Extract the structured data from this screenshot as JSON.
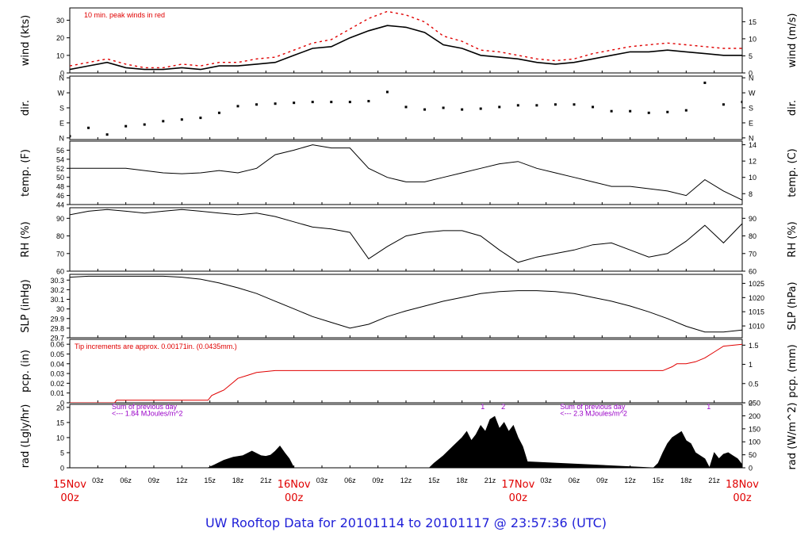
{
  "footer": {
    "title": "UW Rooftop Data for 20101114  to  20101117 @ 23:57:36  (UTC)"
  },
  "colors": {
    "axis": "#000000",
    "series": "#000000",
    "peak": "#e00000",
    "red": "#e00000",
    "purple": "#9a00c8",
    "footer": "#1f1fd8"
  },
  "chart_data": [
    {
      "type": "line",
      "id": "wind",
      "ylabel": "wind (kts)",
      "y2label": "wind (m/s)",
      "ylim": [
        0,
        37
      ],
      "yticks": [
        0,
        10,
        20,
        30
      ],
      "y2ticks": [
        "0",
        "5",
        "10",
        "15"
      ],
      "y2values": [
        0,
        9.72,
        19.44,
        29.16
      ],
      "annotation": "10 min. peak winds in red",
      "series": [
        {
          "x": [
            0,
            2,
            4,
            6,
            8,
            10,
            12,
            14,
            16,
            18,
            20,
            22,
            24,
            26,
            28,
            30,
            32,
            34,
            36,
            38,
            40,
            42,
            44,
            46,
            48,
            50,
            52,
            54,
            56,
            58,
            60,
            62,
            64,
            66,
            68,
            70,
            72
          ],
          "y": [
            2,
            4,
            6,
            3,
            2,
            2,
            3,
            2,
            4,
            4,
            5,
            6,
            10,
            14,
            15,
            20,
            24,
            27,
            26,
            23,
            16,
            14,
            10,
            9,
            8,
            6,
            5,
            6,
            8,
            10,
            12,
            12,
            13,
            12,
            11,
            10,
            10
          ]
        },
        {
          "x": [
            0,
            2,
            4,
            6,
            8,
            10,
            12,
            14,
            16,
            18,
            20,
            22,
            24,
            26,
            28,
            30,
            32,
            34,
            36,
            38,
            40,
            42,
            44,
            46,
            48,
            50,
            52,
            54,
            56,
            58,
            60,
            62,
            64,
            66,
            68,
            70,
            72
          ],
          "y": [
            4,
            6,
            8,
            5,
            3,
            3,
            5,
            4,
            6,
            6,
            8,
            9,
            13,
            17,
            19,
            25,
            31,
            35,
            33,
            29,
            21,
            18,
            13,
            12,
            10,
            8,
            7,
            8,
            11,
            13,
            15,
            16,
            17,
            16,
            15,
            14,
            14
          ]
        }
      ]
    },
    {
      "type": "scatter",
      "id": "dir",
      "ylabel": "dir.",
      "y2label": "dir.",
      "ylim": [
        -10,
        370
      ],
      "yticks": [
        0,
        90,
        180,
        270,
        360
      ],
      "ytick_labels": [
        "N",
        "E",
        "S",
        "W",
        "N"
      ],
      "series": [
        {
          "x": [
            0,
            2,
            4,
            6,
            8,
            10,
            12,
            14,
            16,
            18,
            20,
            22,
            24,
            26,
            28,
            30,
            32,
            34,
            36,
            38,
            40,
            42,
            44,
            46,
            48,
            50,
            52,
            54,
            56,
            58,
            60,
            62,
            64,
            66,
            68,
            70,
            72
          ],
          "y": [
            10,
            60,
            20,
            70,
            80,
            100,
            110,
            120,
            150,
            190,
            200,
            205,
            210,
            215,
            215,
            215,
            220,
            275,
            185,
            170,
            180,
            170,
            175,
            185,
            195,
            195,
            200,
            200,
            185,
            160,
            160,
            150,
            155,
            165,
            330,
            200,
            215
          ]
        }
      ]
    },
    {
      "type": "line",
      "id": "temp",
      "ylabel": "temp. (F)",
      "y2label": "temp. (C)",
      "ylim": [
        44,
        58
      ],
      "yticks": [
        44,
        46,
        48,
        50,
        52,
        54,
        56
      ],
      "y2ticks": [
        "8",
        "10",
        "12",
        "14"
      ],
      "y2values": [
        46.4,
        50,
        53.6,
        57.2
      ],
      "series": [
        {
          "x": [
            0,
            2,
            4,
            6,
            8,
            10,
            12,
            14,
            16,
            18,
            20,
            22,
            24,
            26,
            28,
            30,
            32,
            34,
            36,
            38,
            40,
            42,
            44,
            46,
            48,
            50,
            52,
            54,
            56,
            58,
            60,
            62,
            64,
            66,
            68,
            70,
            72
          ],
          "y": [
            52,
            52,
            52,
            52,
            51.5,
            51,
            50.8,
            51,
            51.5,
            51,
            52,
            55,
            56,
            57.2,
            56.5,
            56.5,
            52,
            50,
            49,
            49,
            50,
            51,
            52,
            53,
            53.5,
            52,
            51,
            50,
            49,
            48,
            48,
            47.5,
            47,
            46,
            49.5,
            47,
            45
          ]
        }
      ]
    },
    {
      "type": "line",
      "id": "rh",
      "ylabel": "RH (%)",
      "y2label": "RH (%)",
      "ylim": [
        60,
        96
      ],
      "yticks": [
        60,
        70,
        80,
        90
      ],
      "y2ticks": [
        "60",
        "70",
        "80",
        "90"
      ],
      "y2values": [
        60,
        70,
        80,
        90
      ],
      "series": [
        {
          "x": [
            0,
            2,
            4,
            6,
            8,
            10,
            12,
            14,
            16,
            18,
            20,
            22,
            24,
            26,
            28,
            30,
            32,
            34,
            36,
            38,
            40,
            42,
            44,
            46,
            48,
            50,
            52,
            54,
            56,
            58,
            60,
            62,
            64,
            66,
            68,
            70,
            72
          ],
          "y": [
            92,
            94,
            95,
            94,
            93,
            94,
            95,
            94,
            93,
            92,
            93,
            91,
            88,
            85,
            84,
            82,
            67,
            74,
            80,
            82,
            83,
            83,
            80,
            72,
            65,
            68,
            70,
            72,
            75,
            76,
            72,
            68,
            70,
            77,
            86,
            76,
            87
          ]
        }
      ]
    },
    {
      "type": "line",
      "id": "slp",
      "ylabel": "SLP (inHg)",
      "y2label": "SLP (hPa)",
      "ylim": [
        29.7,
        30.36
      ],
      "yticks": [
        29.7,
        29.8,
        29.9,
        30.0,
        30.1,
        30.2,
        30.3
      ],
      "y2ticks": [
        "1010",
        "1015",
        "1020",
        "1025"
      ],
      "y2values": [
        29.823,
        29.971,
        30.118,
        30.266
      ],
      "series": [
        {
          "x": [
            0,
            2,
            4,
            6,
            8,
            10,
            12,
            14,
            16,
            18,
            20,
            22,
            24,
            26,
            28,
            30,
            32,
            34,
            36,
            38,
            40,
            42,
            44,
            46,
            48,
            50,
            52,
            54,
            56,
            58,
            60,
            62,
            64,
            66,
            68,
            70,
            72
          ],
          "y": [
            30.33,
            30.34,
            30.34,
            30.34,
            30.34,
            30.34,
            30.33,
            30.31,
            30.27,
            30.22,
            30.16,
            30.08,
            30.0,
            29.92,
            29.86,
            29.8,
            29.84,
            29.92,
            29.98,
            30.03,
            30.08,
            30.12,
            30.16,
            30.18,
            30.19,
            30.19,
            30.18,
            30.16,
            30.12,
            30.08,
            30.03,
            29.97,
            29.9,
            29.82,
            29.76,
            29.76,
            29.78
          ]
        }
      ]
    },
    {
      "type": "line",
      "id": "pcp",
      "ylabel": "pcp. (in)",
      "y2label": "pcp. (mm)",
      "ylim": [
        0,
        0.065
      ],
      "yticks": [
        0,
        0.01,
        0.02,
        0.03,
        0.04,
        0.05,
        0.06
      ],
      "y2ticks": [
        "0",
        "0.5",
        "1",
        "1.5"
      ],
      "y2values": [
        0,
        0.01969,
        0.03937,
        0.05906
      ],
      "annotation": "Tip increments are approx. 0.00171in. (0.0435mm.)",
      "series": [
        {
          "x": [
            0,
            4.8,
            5.0,
            14.8,
            15.2,
            16,
            16.5,
            17,
            17.5,
            18,
            19,
            20,
            22,
            36,
            63.5,
            64.5,
            65,
            66,
            67,
            68,
            69,
            70,
            72
          ],
          "y": [
            0,
            0,
            0.0026,
            0.0026,
            0.0075,
            0.011,
            0.013,
            0.017,
            0.021,
            0.025,
            0.028,
            0.031,
            0.033,
            0.033,
            0.033,
            0.037,
            0.04,
            0.04,
            0.042,
            0.046,
            0.052,
            0.058,
            0.06
          ]
        }
      ]
    },
    {
      "type": "area",
      "id": "rad",
      "ylabel": "rad (Lgly/hr)",
      "y2label": "rad (W/m^2)",
      "ylim": [
        0,
        21
      ],
      "yticks": [
        0,
        5,
        10,
        15,
        20
      ],
      "y2ticks": [
        "0",
        "50",
        "100",
        "150",
        "200",
        "250"
      ],
      "y2values": [
        0,
        4.3,
        8.6,
        12.9,
        17.2,
        21.5
      ],
      "annotations": [
        {
          "text": "Sum of previous day",
          "x": 4.5,
          "y": 20.2
        },
        {
          "text": "<--- 1.84 MJoules/m^2",
          "x": 4.5,
          "y": 18.0
        },
        {
          "text": "Sum of previous day",
          "x": 52.5,
          "y": 20.2
        },
        {
          "text": "<--- 2.3 MJoules/m^2",
          "x": 52.5,
          "y": 18.0
        },
        {
          "text": "1",
          "x": 44.0,
          "y": 20.2
        },
        {
          "text": "2",
          "x": 46.2,
          "y": 20.2
        },
        {
          "text": "1",
          "x": 68.2,
          "y": 20.2
        }
      ],
      "series": [
        {
          "x": [
            0,
            14.8,
            15.5,
            16.5,
            17.5,
            18.5,
            19.5,
            20.5,
            21,
            21.5,
            22,
            22.5,
            23,
            23.5,
            24,
            38.5,
            39,
            40,
            41,
            42,
            42.5,
            43,
            43.5,
            44,
            44.5,
            45,
            45.5,
            46,
            46.5,
            47,
            47.5,
            48,
            48.5,
            49,
            62.5,
            63,
            63.5,
            64,
            64.5,
            65,
            65.5,
            66,
            66.5,
            67,
            67.5,
            68,
            68.5,
            69,
            69.5,
            70,
            70.5,
            71,
            71.5,
            72
          ],
          "y": [
            0,
            0,
            1,
            2.5,
            3.5,
            4,
            5.5,
            4,
            3.8,
            4.2,
            5.5,
            7.2,
            5,
            3,
            0,
            0,
            1.5,
            4,
            7,
            10,
            12,
            9,
            11,
            14,
            12,
            16,
            17,
            13,
            15,
            12,
            14,
            10,
            7,
            2,
            0,
            1.5,
            5,
            8,
            10,
            11,
            12,
            9,
            8,
            5,
            4,
            3,
            0,
            5,
            3,
            4.5,
            5,
            4,
            3,
            1
          ]
        }
      ]
    }
  ],
  "x_axis": {
    "hours_per_day": 24,
    "span": 72,
    "ticks": [
      {
        "h": 0,
        "label": "15Nov",
        "label2": "00z",
        "major": true
      },
      {
        "h": 3,
        "label": "03z"
      },
      {
        "h": 6,
        "label": "06z"
      },
      {
        "h": 9,
        "label": "09z"
      },
      {
        "h": 12,
        "label": "12z"
      },
      {
        "h": 15,
        "label": "15z"
      },
      {
        "h": 18,
        "label": "18z"
      },
      {
        "h": 21,
        "label": "21z"
      },
      {
        "h": 24,
        "label": "16Nov",
        "label2": "00z",
        "major": true
      },
      {
        "h": 27,
        "label": "03z"
      },
      {
        "h": 30,
        "label": "06z"
      },
      {
        "h": 33,
        "label": "09z"
      },
      {
        "h": 36,
        "label": "12z"
      },
      {
        "h": 39,
        "label": "15z"
      },
      {
        "h": 42,
        "label": "18z"
      },
      {
        "h": 45,
        "label": "21z"
      },
      {
        "h": 48,
        "label": "17Nov",
        "label2": "00z",
        "major": true
      },
      {
        "h": 51,
        "label": "03z"
      },
      {
        "h": 54,
        "label": "06z"
      },
      {
        "h": 57,
        "label": "09z"
      },
      {
        "h": 60,
        "label": "12z"
      },
      {
        "h": 63,
        "label": "15z"
      },
      {
        "h": 66,
        "label": "18z"
      },
      {
        "h": 69,
        "label": "21z"
      },
      {
        "h": 72,
        "label": "18Nov",
        "label2": "00z",
        "major": true
      }
    ]
  }
}
